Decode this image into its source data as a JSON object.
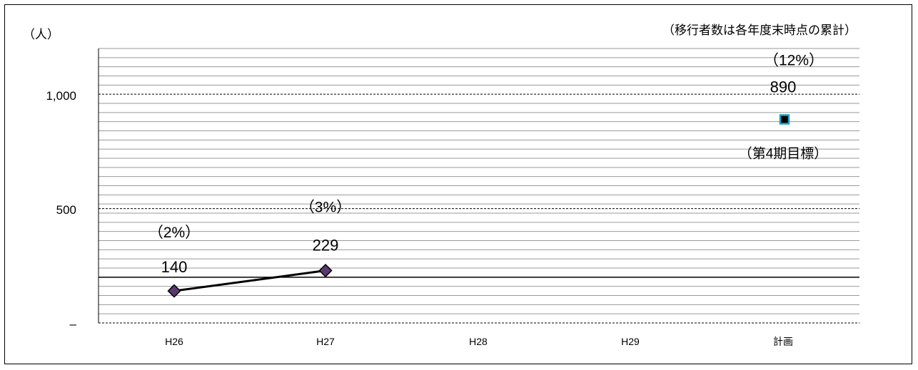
{
  "chart_data": {
    "type": "line",
    "categories": [
      "H26",
      "H27",
      "H28",
      "H29",
      "計画"
    ],
    "y_unit": "（人）",
    "note": "（移行者数は各年度末時点の累計）",
    "ylim": [
      0,
      1200
    ],
    "y_ticks": [
      {
        "value": 0,
        "label": "–"
      },
      {
        "value": 500,
        "label": "500"
      },
      {
        "value": 1000,
        "label": "1,000"
      }
    ],
    "reference_line": 200,
    "series": [
      {
        "points": [
          {
            "category": "H26",
            "value": 140,
            "label": "140",
            "pct": "（2%）"
          },
          {
            "category": "H27",
            "value": 229,
            "label": "229",
            "pct": "（3%）"
          }
        ],
        "color": "#000000",
        "marker_color": "#5a3a6e"
      }
    ],
    "target": {
      "category": "計画",
      "value": 890,
      "label": "890",
      "pct": "（12%）",
      "caption": "（第4期目標）",
      "marker_color": "#1aa0c0"
    }
  }
}
